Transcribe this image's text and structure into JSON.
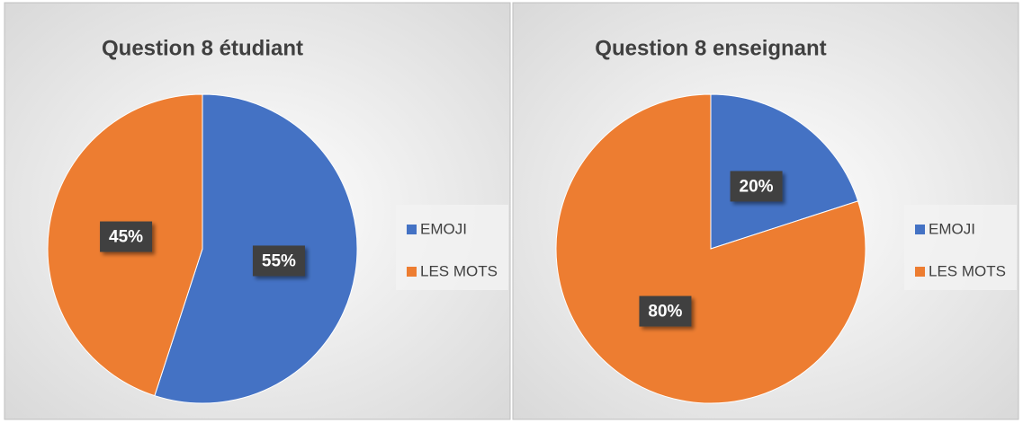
{
  "chart_data": [
    {
      "type": "pie",
      "title": "Question 8 étudiant",
      "categories": [
        "EMOJI",
        "LES MOTS"
      ],
      "values": [
        55,
        45
      ],
      "value_labels": [
        "55%",
        "45%"
      ],
      "colors": [
        "#4472c4",
        "#ed7d31"
      ],
      "legend": "right"
    },
    {
      "type": "pie",
      "title": "Question 8 enseignant",
      "categories": [
        "EMOJI",
        "LES MOTS"
      ],
      "values": [
        20,
        80
      ],
      "value_labels": [
        "20%",
        "80%"
      ],
      "colors": [
        "#4472c4",
        "#ed7d31"
      ],
      "legend": "right"
    }
  ]
}
